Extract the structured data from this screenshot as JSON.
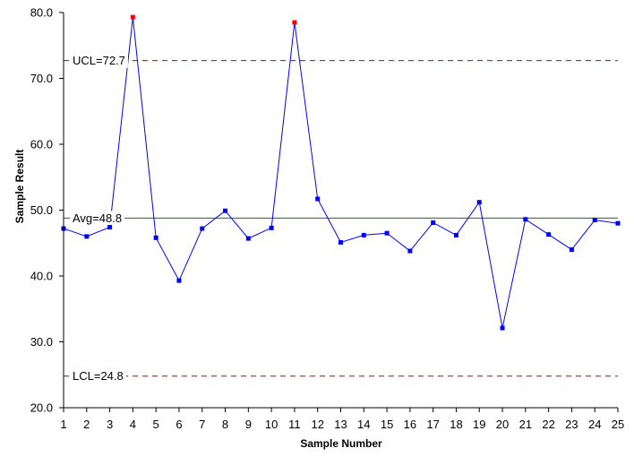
{
  "chart_data": {
    "type": "line",
    "xlabel": "Sample Number",
    "ylabel": "Sample Result",
    "ylim": [
      20,
      80
    ],
    "y_ticks": [
      "20.0",
      "30.0",
      "40.0",
      "50.0",
      "60.0",
      "70.0",
      "80.0"
    ],
    "x": [
      1,
      2,
      3,
      4,
      5,
      6,
      7,
      8,
      9,
      10,
      11,
      12,
      13,
      14,
      15,
      16,
      17,
      18,
      19,
      20,
      21,
      22,
      23,
      24,
      25
    ],
    "values": [
      47.2,
      46.0,
      47.4,
      79.3,
      45.8,
      39.3,
      47.2,
      49.9,
      45.7,
      47.3,
      78.5,
      51.7,
      45.1,
      46.2,
      46.5,
      43.8,
      48.1,
      46.2,
      51.2,
      32.1,
      48.6,
      46.3,
      44.0,
      48.5,
      48.0
    ],
    "out_of_control": [
      4,
      11
    ],
    "reference_lines": [
      {
        "label": "UCL=72.7",
        "value": 72.7,
        "color": "#c00000",
        "style": "dashed"
      },
      {
        "label": "Avg=48.8",
        "value": 48.8,
        "color": "#008000",
        "style": "solid"
      },
      {
        "label": "LCL=24.8",
        "value": 24.8,
        "color": "#c00000",
        "style": "dashed"
      }
    ],
    "colors": {
      "series": "#0000ff",
      "out_of_control_point": "#ff0000",
      "axis": "#000000"
    },
    "grid": false
  }
}
